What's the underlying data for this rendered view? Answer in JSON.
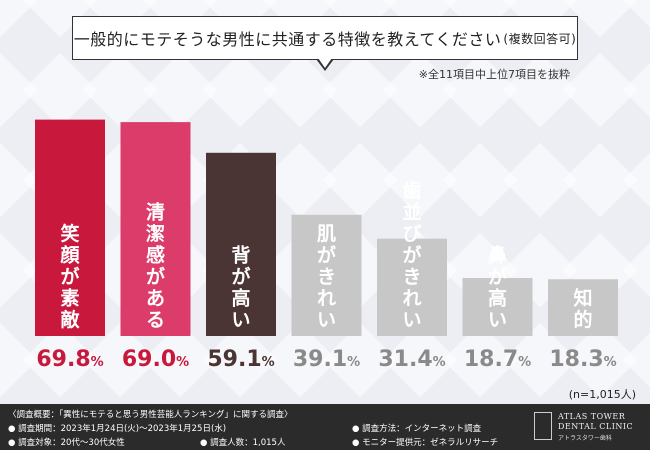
{
  "header": {
    "question": "一般的にモテそうな男性に共通する特徴を教えてください",
    "question_suffix": "(複数回答可)",
    "note": "※全11項目中上位7項目を抜粋"
  },
  "chart_data": {
    "type": "bar",
    "categories": [
      "笑顔が素敵",
      "清潔感がある",
      "背が高い",
      "肌がきれい",
      "歯並びがきれい",
      "鼻が高い",
      "知的"
    ],
    "values": [
      69.8,
      69.0,
      59.1,
      39.1,
      31.4,
      18.7,
      18.3
    ],
    "value_labels": [
      "69.8",
      "69.0",
      "59.1",
      "39.1",
      "31.4",
      "18.7",
      "18.3"
    ],
    "unit": "%",
    "ylim": [
      0,
      100
    ],
    "bar_colors": [
      "#c8183c",
      "#db3c6a",
      "#4a3434",
      "#c7c7c7",
      "#c7c7c7",
      "#c7c7c7",
      "#c7c7c7"
    ],
    "label_colors": [
      "#c8183c",
      "#c8183c",
      "#4a3434",
      "#8a8a8a",
      "#8a8a8a",
      "#8a8a8a",
      "#8a8a8a"
    ],
    "bar_text_color": "#ffffff",
    "sample_size": "(n=1,015人)"
  },
  "footer": {
    "overview": "〈調査概要：「異性にモテると思う男性芸能人ランキング」に関する調査〉",
    "period": "● 調査期間：2023年1月24日(火)〜2023年1月25日(水)",
    "method": "● 調査方法：インターネット調査",
    "target": "● 調査対象：20代〜30代女性",
    "count": "● 調査人数：1,015人",
    "provider": "● モニター提供元：ゼネラルリサーチ",
    "logo_line1": "ATLAS TOWER",
    "logo_line2": "DENTAL CLINIC",
    "logo_line3": "アトラスタワー歯科"
  }
}
